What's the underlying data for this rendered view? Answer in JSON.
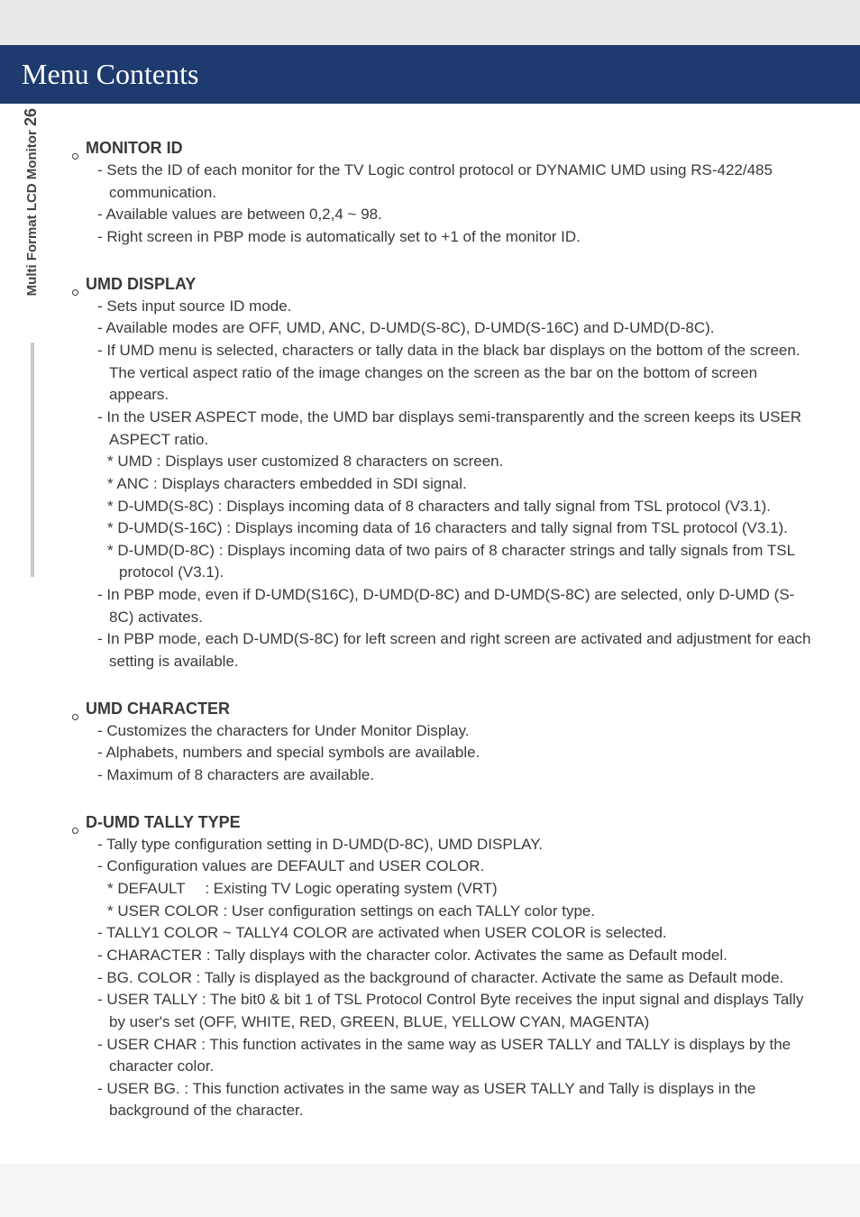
{
  "title": "Menu Contents",
  "side": {
    "text": "Multi Format LCD Monitor",
    "page": "26"
  },
  "s1": {
    "h": "MONITOR ID",
    "l1": "- Sets the ID of each monitor for the TV Logic control protocol or DYNAMIC UMD using RS-422/485 communication.",
    "l2": "- Available values are between 0,2,4 ~ 98.",
    "l3": "- Right screen in PBP mode is automatically set to +1 of the monitor ID."
  },
  "s2": {
    "h": "UMD DISPLAY",
    "l1": "- Sets input source ID mode.",
    "l2": "- Available modes are OFF, UMD, ANC, D-UMD(S-8C), D-UMD(S-16C) and D-UMD(D-8C).",
    "l3": "- If UMD menu is selected, characters or tally data in the black bar displays on the bottom of the screen. The vertical aspect ratio of the image changes on the screen as the bar on the bottom of screen appears.",
    "l4": "- In the USER ASPECT mode, the UMD bar displays semi-transparently and the screen keeps its USER ASPECT ratio.",
    "s1": "* UMD : Displays user customized 8 characters on screen.",
    "s2": "* ANC : Displays characters embedded in SDI signal.",
    "s3": "* D-UMD(S-8C) : Displays incoming data of 8 characters and tally signal from TSL protocol (V3.1).",
    "s4": "* D-UMD(S-16C) : Displays incoming data of 16 characters and tally signal from TSL protocol (V3.1).",
    "s5": "* D-UMD(D-8C) : Displays incoming data of two pairs of 8 character strings and tally signals from TSL protocol (V3.1).",
    "l5": "- In PBP mode, even if D-UMD(S16C), D-UMD(D-8C) and D-UMD(S-8C) are selected, only D-UMD (S-8C) activates.",
    "l6": "- In PBP mode, each D-UMD(S-8C) for left screen and right screen are activated and adjustment for each setting is available."
  },
  "s3": {
    "h": "UMD CHARACTER",
    "l1": "- Customizes the characters for Under Monitor Display.",
    "l2": "- Alphabets, numbers and special symbols are available.",
    "l3": "- Maximum of 8 characters are available."
  },
  "s4": {
    "h": "D-UMD TALLY TYPE",
    "l1": "- Tally type configuration setting in D-UMD(D-8C), UMD DISPLAY.",
    "l2": "- Configuration values are DEFAULT and USER COLOR.",
    "s1": "* DEFAULT   : Existing TV Logic operating system (VRT)",
    "s2": "* USER COLOR : User configuration settings on each TALLY color type.",
    "l3": "- TALLY1 COLOR ~ TALLY4 COLOR are activated when USER COLOR is selected.",
    "l4": "- CHARACTER : Tally displays with the character color. Activates the same as Default model.",
    "l5": "- BG. COLOR  :  Tally is displayed as the background of character. Activate the same as Default mode.",
    "l6": "- USER TALLY : The bit0 & bit 1 of TSL Protocol Control Byte receives the input signal and displays Tally by user's set (OFF, WHITE, RED, GREEN, BLUE, YELLOW CYAN, MAGENTA)",
    "l7": "- USER CHAR :  This function activates in the same way as USER TALLY and TALLY is displays by the character color.",
    "l8": "- USER BG. : This function activates in the same way as USER TALLY and Tally is displays in the background of the character."
  }
}
